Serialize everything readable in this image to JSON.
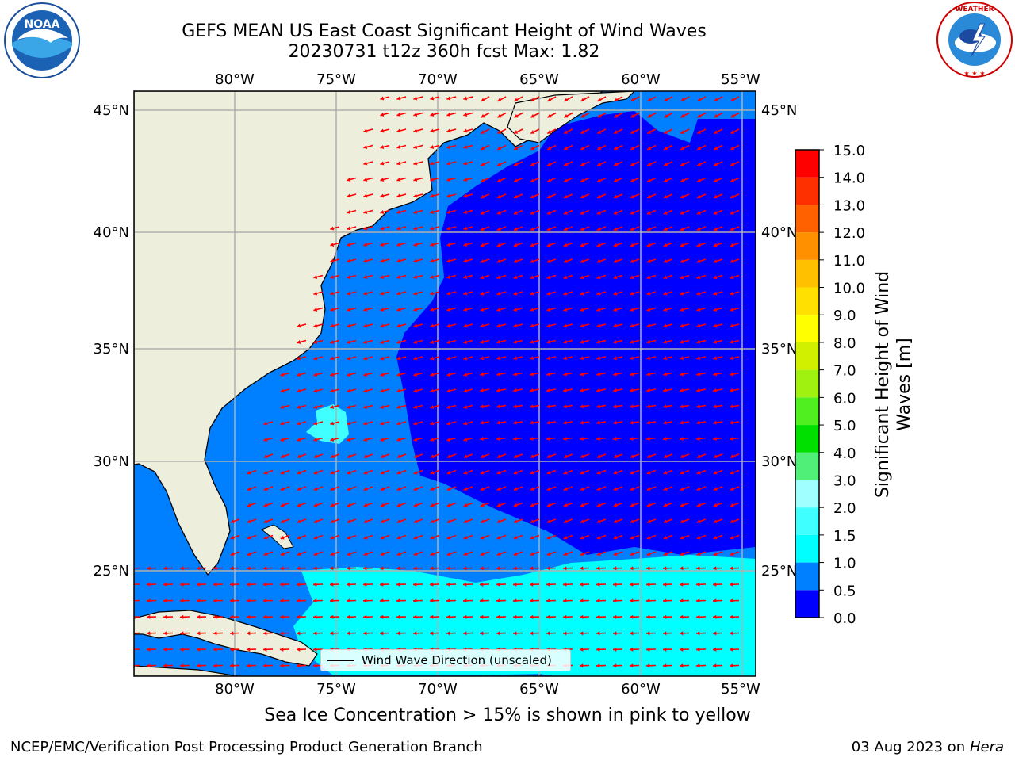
{
  "title_line1": "GEFS MEAN US East Coast Significant Height of Wind Waves",
  "title_line2": "20230731 t12z 360h fcst   Max: 1.82",
  "lon_labels": [
    "80°W",
    "75°W",
    "70°W",
    "65°W",
    "60°W",
    "55°W"
  ],
  "lat_labels": [
    "45°N",
    "40°N",
    "35°N",
    "30°N",
    "25°N"
  ],
  "legend_label": "Wind Wave Direction (unscaled)",
  "colorbar": {
    "label": "Significant Height of Wind Waves [m]",
    "ticks": [
      "0.0",
      "0.5",
      "1.0",
      "1.5",
      "2.0",
      "3.0",
      "4.0",
      "5.0",
      "6.0",
      "7.0",
      "8.0",
      "9.0",
      "10.0",
      "11.0",
      "12.0",
      "13.0",
      "14.0",
      "15.0"
    ],
    "colors": [
      "#0000ff",
      "#0080ff",
      "#00ffff",
      "#40ffff",
      "#a0ffff",
      "#50f078",
      "#00e000",
      "#50f020",
      "#a0f010",
      "#d0f000",
      "#ffff00",
      "#ffe000",
      "#ffc000",
      "#ff9000",
      "#ff6000",
      "#ff3000",
      "#ff0000"
    ]
  },
  "sea_ice_note": "Sea Ice Concentration > 15% is shown in pink to yellow",
  "footer_left": "NCEP/EMC/Verification Post Processing Product Generation Branch",
  "footer_date": "03 Aug 2023 on",
  "footer_host": "Hera",
  "logos": {
    "left": "NOAA",
    "right_text": "NATIONAL WEATHER SERVICE"
  },
  "colors": {
    "land": "#eeeedd",
    "ocean_low": "#0000ff",
    "ocean_mid": "#0080ff",
    "ocean_cyan": "#00ffff",
    "arrows": "#ff0000",
    "grid": "#b0b0b0"
  }
}
